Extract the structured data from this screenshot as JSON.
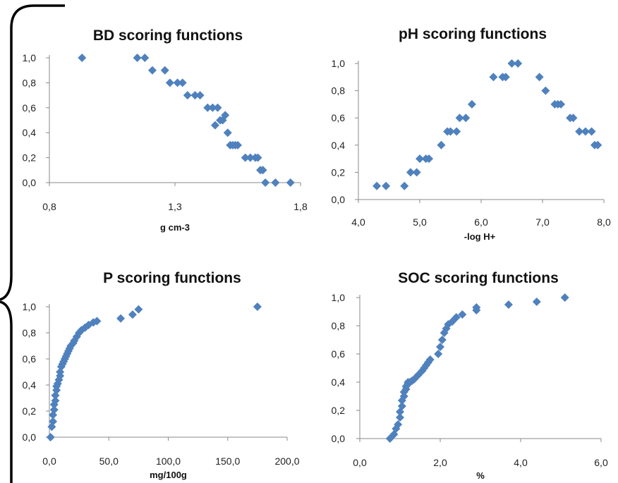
{
  "chart_data": [
    {
      "type": "scatter",
      "title": "BD scoring functions",
      "xlabel": "g cm-3",
      "xlim": [
        0.8,
        1.8
      ],
      "ylim": [
        0,
        1
      ],
      "xticks": [
        "0,8",
        "1,3",
        "1,8"
      ],
      "yticks": [
        "0,0",
        "0,2",
        "0,4",
        "0,6",
        "0,8",
        "1,0"
      ],
      "color": "#4f81bd",
      "x": [
        0.93,
        1.15,
        1.18,
        1.21,
        1.26,
        1.28,
        1.31,
        1.33,
        1.35,
        1.38,
        1.4,
        1.43,
        1.45,
        1.46,
        1.47,
        1.48,
        1.49,
        1.5,
        1.51,
        1.52,
        1.53,
        1.54,
        1.55,
        1.58,
        1.6,
        1.62,
        1.63,
        1.64,
        1.65,
        1.66,
        1.7,
        1.76
      ],
      "y": [
        1.0,
        1.0,
        1.0,
        0.9,
        0.9,
        0.8,
        0.8,
        0.8,
        0.7,
        0.7,
        0.7,
        0.6,
        0.6,
        0.46,
        0.6,
        0.5,
        0.5,
        0.54,
        0.4,
        0.3,
        0.3,
        0.3,
        0.3,
        0.2,
        0.2,
        0.2,
        0.2,
        0.1,
        0.1,
        0.0,
        0.0,
        0.0
      ]
    },
    {
      "type": "scatter",
      "title": "pH scoring functions",
      "xlabel": "-log H+",
      "xlim": [
        4.0,
        8.0
      ],
      "ylim": [
        0,
        1
      ],
      "xticks": [
        "4,0",
        "5,0",
        "6,0",
        "7,0",
        "8,0"
      ],
      "yticks": [
        "0,0",
        "0,2",
        "0,4",
        "0,6",
        "0,8",
        "1,0"
      ],
      "color": "#4f81bd",
      "x": [
        4.3,
        4.45,
        4.75,
        4.85,
        4.95,
        5.0,
        5.1,
        5.15,
        5.35,
        5.45,
        5.5,
        5.6,
        5.65,
        5.75,
        5.85,
        6.2,
        6.35,
        6.4,
        6.5,
        6.6,
        6.95,
        7.05,
        7.2,
        7.25,
        7.3,
        7.45,
        7.5,
        7.6,
        7.7,
        7.8,
        7.85,
        7.9
      ],
      "y": [
        0.1,
        0.1,
        0.1,
        0.2,
        0.2,
        0.3,
        0.3,
        0.3,
        0.4,
        0.5,
        0.5,
        0.5,
        0.6,
        0.6,
        0.7,
        0.9,
        0.9,
        0.9,
        1.0,
        1.0,
        0.9,
        0.8,
        0.7,
        0.7,
        0.7,
        0.6,
        0.6,
        0.5,
        0.5,
        0.5,
        0.4,
        0.4
      ]
    },
    {
      "type": "scatter",
      "title": "P scoring functions",
      "xlabel": "mg/100g",
      "xlim": [
        0,
        200
      ],
      "ylim": [
        0,
        1
      ],
      "xticks": [
        "0,0",
        "50,0",
        "100,0",
        "150,0",
        "200,0"
      ],
      "yticks": [
        "0,0",
        "0,2",
        "0,4",
        "0,6",
        "0,8",
        "1,0"
      ],
      "color": "#4f81bd",
      "x": [
        1,
        2,
        3,
        3,
        4,
        4,
        5,
        5,
        6,
        6,
        7,
        8,
        9,
        9,
        10,
        11,
        12,
        13,
        14,
        15,
        16,
        17,
        18,
        20,
        21,
        23,
        25,
        27,
        30,
        33,
        37,
        40,
        60,
        70,
        75,
        175
      ],
      "y": [
        0.0,
        0.08,
        0.12,
        0.17,
        0.21,
        0.25,
        0.28,
        0.32,
        0.36,
        0.39,
        0.41,
        0.44,
        0.47,
        0.5,
        0.54,
        0.56,
        0.58,
        0.6,
        0.62,
        0.64,
        0.66,
        0.68,
        0.7,
        0.72,
        0.74,
        0.77,
        0.8,
        0.82,
        0.84,
        0.86,
        0.88,
        0.89,
        0.91,
        0.94,
        0.98,
        1.0
      ]
    },
    {
      "type": "scatter",
      "title": "SOC scoring functions",
      "xlabel": "%",
      "xlim": [
        0,
        6
      ],
      "ylim": [
        0,
        1
      ],
      "xticks": [
        "0,0",
        "2,0",
        "4,0",
        "6,0"
      ],
      "yticks": [
        "0,0",
        "0,2",
        "0,4",
        "0,6",
        "0,8",
        "1,0"
      ],
      "color": "#4f81bd",
      "x": [
        0.75,
        0.85,
        0.9,
        0.95,
        1.0,
        1.0,
        1.05,
        1.05,
        1.1,
        1.1,
        1.15,
        1.15,
        1.2,
        1.2,
        1.25,
        1.3,
        1.35,
        1.45,
        1.55,
        1.6,
        1.65,
        1.7,
        1.75,
        1.95,
        2.0,
        2.05,
        2.1,
        2.15,
        2.2,
        2.3,
        2.4,
        2.55,
        2.9,
        2.9,
        3.7,
        4.4,
        5.1
      ],
      "y": [
        0.0,
        0.03,
        0.07,
        0.1,
        0.15,
        0.19,
        0.23,
        0.27,
        0.3,
        0.33,
        0.35,
        0.37,
        0.39,
        0.4,
        0.4,
        0.41,
        0.42,
        0.45,
        0.48,
        0.5,
        0.52,
        0.54,
        0.56,
        0.6,
        0.65,
        0.7,
        0.75,
        0.78,
        0.81,
        0.83,
        0.86,
        0.88,
        0.91,
        0.93,
        0.95,
        0.97,
        1.0
      ]
    }
  ]
}
